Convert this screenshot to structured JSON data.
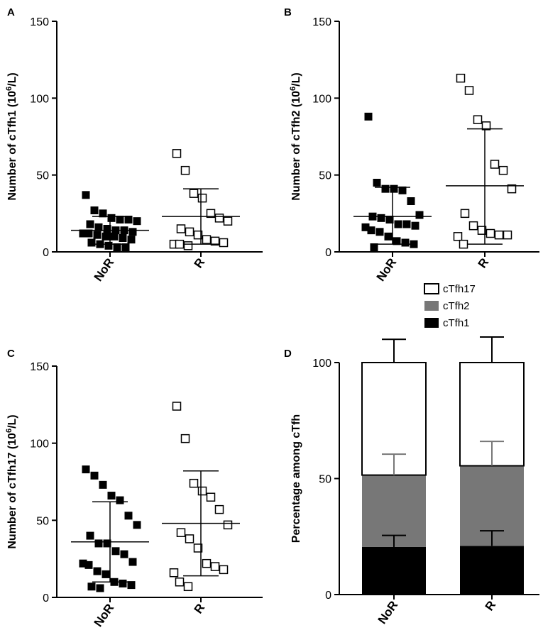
{
  "chart_data": [
    {
      "panel": "A",
      "type": "scatter",
      "ylabel": "Number of cTfh1 (10",
      "ylabel_sup": "6",
      "ylabel_tail": "/L)",
      "ylim": [
        0,
        150
      ],
      "yticks": [
        "0",
        "50",
        "100",
        "150"
      ],
      "categories": [
        "NoR",
        "R"
      ],
      "series": [
        {
          "name": "NoR",
          "marker": "filled-square",
          "values": [
            37,
            27,
            25,
            22,
            21,
            21,
            20,
            18,
            16,
            15,
            14,
            14,
            13,
            12,
            12,
            11,
            10,
            10,
            9,
            8,
            6,
            5,
            4,
            3,
            3
          ],
          "mean": 14,
          "sd_low": 5,
          "sd_high": 23
        },
        {
          "name": "R",
          "marker": "open-square",
          "values": [
            64,
            53,
            38,
            35,
            25,
            22,
            20,
            15,
            13,
            11,
            8,
            7,
            6,
            5,
            5,
            4
          ],
          "mean": 23,
          "sd_low": 5,
          "sd_high": 41
        }
      ]
    },
    {
      "panel": "B",
      "type": "scatter",
      "ylabel": "Number of cTfh2 (10",
      "ylabel_sup": "6",
      "ylabel_tail": "/L)",
      "ylim": [
        0,
        150
      ],
      "yticks": [
        "0",
        "50",
        "100",
        "150"
      ],
      "categories": [
        "NoR",
        "R"
      ],
      "series": [
        {
          "name": "NoR",
          "marker": "filled-square",
          "values": [
            88,
            45,
            41,
            41,
            40,
            33,
            24,
            23,
            22,
            21,
            18,
            18,
            17,
            16,
            14,
            13,
            10,
            7,
            6,
            5,
            3
          ],
          "mean": 23,
          "sd_low": 5,
          "sd_high": 42
        },
        {
          "name": "R",
          "marker": "open-square",
          "values": [
            113,
            105,
            86,
            82,
            57,
            53,
            41,
            25,
            17,
            14,
            12,
            11,
            11,
            10,
            5
          ],
          "mean": 43,
          "sd_low": 5,
          "sd_high": 80
        }
      ]
    },
    {
      "panel": "C",
      "type": "scatter",
      "ylabel": "Number of cTfh17 (10",
      "ylabel_sup": "6",
      "ylabel_tail": "/L)",
      "ylim": [
        0,
        150
      ],
      "yticks": [
        "0",
        "50",
        "100",
        "150"
      ],
      "categories": [
        "NoR",
        "R"
      ],
      "series": [
        {
          "name": "NoR",
          "marker": "filled-square",
          "values": [
            83,
            79,
            73,
            66,
            63,
            53,
            47,
            40,
            35,
            35,
            30,
            28,
            23,
            22,
            21,
            17,
            15,
            10,
            9,
            8,
            7,
            6
          ],
          "mean": 36,
          "sd_low": 10,
          "sd_high": 62
        },
        {
          "name": "R",
          "marker": "open-square",
          "values": [
            124,
            103,
            74,
            69,
            65,
            57,
            47,
            42,
            38,
            32,
            22,
            20,
            18,
            16,
            10,
            7
          ],
          "mean": 48,
          "sd_low": 14,
          "sd_high": 82
        }
      ]
    },
    {
      "panel": "D",
      "type": "bar",
      "stacked": true,
      "ylabel": "Percentage among cTfh",
      "ylim": [
        0,
        100
      ],
      "yticks": [
        "0",
        "50",
        "100"
      ],
      "categories": [
        "NoR",
        "R"
      ],
      "legend_position": "top",
      "series": [
        {
          "name": "cTfh1",
          "color": "#000000",
          "values": [
            20.5,
            21
          ],
          "errors": [
            5,
            6.5
          ]
        },
        {
          "name": "cTfh2",
          "color": "#777777",
          "values": [
            31,
            34.5
          ],
          "errors": [
            9,
            10.5
          ]
        },
        {
          "name": "cTfh17",
          "color": "#ffffff",
          "values": [
            48.5,
            44.5
          ],
          "errors": [
            10,
            11
          ]
        }
      ],
      "legend": [
        "cTfh17",
        "cTfh2",
        "cTfh1"
      ]
    }
  ]
}
